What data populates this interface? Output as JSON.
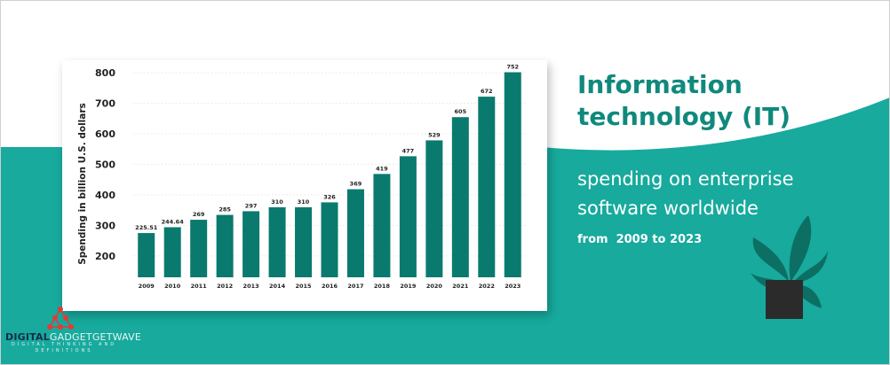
{
  "headline": {
    "title_line1": "Information",
    "title_line2": "technology (IT)",
    "subtitle_line1": "spending on enterprise",
    "subtitle_line2": "software worldwide",
    "range": "from  2009 to 2023"
  },
  "logo": {
    "name_bold": "DIGITAL",
    "name_rest": "GADGETGETWAVE",
    "tagline": "DIGITAL THINKING AND DEFINITIONS"
  },
  "colors": {
    "bar": "#0a7a6e",
    "teal_bg": "#17aa9d",
    "title": "#10897d"
  },
  "chart_data": {
    "type": "bar",
    "title": "",
    "xlabel": "",
    "ylabel": "Spending in billion U.S. dollars",
    "categories": [
      "2009",
      "2010",
      "2011",
      "2012",
      "2013",
      "2014",
      "2015",
      "2016",
      "2017",
      "2018",
      "2019",
      "2020",
      "2021",
      "2022",
      "2023"
    ],
    "values": [
      225.51,
      244.64,
      269,
      285,
      297,
      310,
      310,
      326,
      369,
      419,
      477,
      529,
      605,
      672,
      752
    ],
    "data_labels": [
      "225.51",
      "244.64",
      "269",
      "285",
      "297",
      "310",
      "310",
      "326",
      "369",
      "419",
      "477",
      "529",
      "605",
      "672",
      "752"
    ],
    "yticks": [
      200,
      300,
      400,
      500,
      600,
      700,
      800
    ],
    "ylim": [
      130,
      800
    ],
    "grid": true,
    "legend": "none"
  }
}
